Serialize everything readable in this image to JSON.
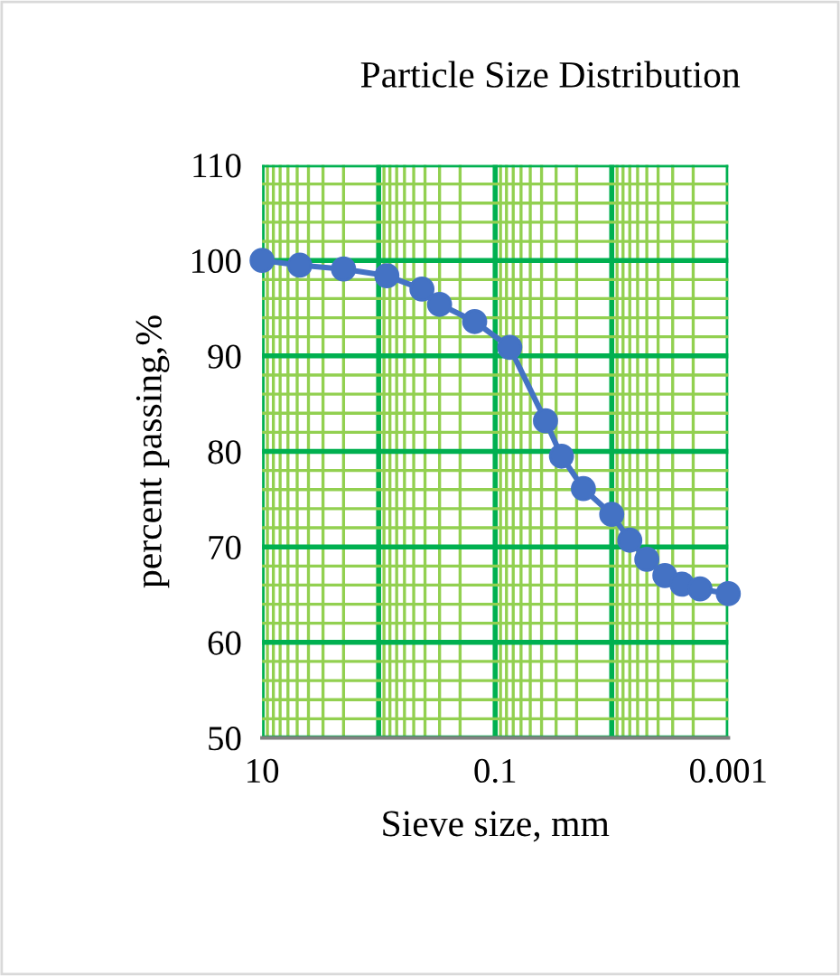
{
  "chart_data": {
    "type": "line",
    "title": "Particle Size Distribution",
    "xlabel": "Sieve size, mm",
    "ylabel": "percent passing,%",
    "x": [
      10,
      4.75,
      2,
      0.85,
      0.425,
      0.3,
      0.15,
      0.075,
      0.037,
      0.027,
      0.0175,
      0.01,
      0.007,
      0.005,
      0.0035,
      0.0025,
      0.00175,
      0.001
    ],
    "series": [
      {
        "color": "#4472c4",
        "values": [
          100,
          99.5,
          99.1,
          98.4,
          97.0,
          95.4,
          93.6,
          90.9,
          83.2,
          79.5,
          76.1,
          73.4,
          70.7,
          68.7,
          67.0,
          66.1,
          65.6,
          65.1
        ]
      }
    ],
    "log": "x",
    "xlim": [
      10,
      0.001
    ],
    "xticks": [
      10,
      {
        "value": 9,
        "label": null
      },
      {
        "value": 8,
        "label": null
      },
      {
        "value": 7,
        "label": null
      },
      {
        "value": 6,
        "label": null
      },
      {
        "value": 5,
        "label": null
      },
      {
        "value": 4,
        "label": null
      },
      {
        "value": 3,
        "label": null
      },
      {
        "value": 2,
        "label": null
      },
      {
        "value": 1,
        "label": null
      },
      {
        "value": 0.9,
        "label": null
      },
      {
        "value": 0.8,
        "label": null
      },
      {
        "value": 0.7,
        "label": null
      },
      {
        "value": 0.6,
        "label": null
      },
      {
        "value": 0.5,
        "label": null
      },
      {
        "value": 0.4,
        "label": null
      },
      {
        "value": 0.3,
        "label": null
      },
      {
        "value": 0.2,
        "label": null
      },
      0.1,
      {
        "value": 0.09,
        "label": null
      },
      {
        "value": 0.08,
        "label": null
      },
      {
        "value": 0.07,
        "label": null
      },
      {
        "value": 0.06,
        "label": null
      },
      {
        "value": 0.05,
        "label": null
      },
      {
        "value": 0.04,
        "label": null
      },
      {
        "value": 0.03,
        "label": null
      },
      {
        "value": 0.02,
        "label": null
      },
      {
        "value": 0.01,
        "label": null
      },
      {
        "value": 0.009,
        "label": null
      },
      {
        "value": 0.008,
        "label": null
      },
      {
        "value": 0.007,
        "label": null
      },
      {
        "value": 0.006,
        "label": null
      },
      {
        "value": 0.005,
        "label": null
      },
      {
        "value": 0.004,
        "label": null
      },
      {
        "value": 0.003,
        "label": null
      },
      {
        "value": 0.002,
        "label": null
      },
      0.001
    ],
    "ylim": [
      50,
      110
    ],
    "yticks": [
      50,
      {
        "value": 52,
        "label": null
      },
      {
        "value": 54,
        "label": null
      },
      {
        "value": 56,
        "label": null
      },
      {
        "value": 58,
        "label": null
      },
      60,
      {
        "value": 62,
        "label": null
      },
      {
        "value": 64,
        "label": null
      },
      {
        "value": 66,
        "label": null
      },
      {
        "value": 68,
        "label": null
      },
      70,
      {
        "value": 72,
        "label": null
      },
      {
        "value": 74,
        "label": null
      },
      {
        "value": 76,
        "label": null
      },
      {
        "value": 78,
        "label": null
      },
      80,
      {
        "value": 82,
        "label": null
      },
      {
        "value": 84,
        "label": null
      },
      {
        "value": 86,
        "label": null
      },
      {
        "value": 88,
        "label": null
      },
      90,
      {
        "value": 92,
        "label": null
      },
      {
        "value": 94,
        "label": null
      },
      {
        "value": 96,
        "label": null
      },
      {
        "value": 98,
        "label": null
      },
      100,
      {
        "value": 102,
        "label": null
      },
      {
        "value": 104,
        "label": null
      },
      {
        "value": 106,
        "label": null
      },
      {
        "value": 108,
        "label": null
      },
      110
    ],
    "grid": true,
    "marker": "circle",
    "line_style": "solid",
    "legend": false
  }
}
